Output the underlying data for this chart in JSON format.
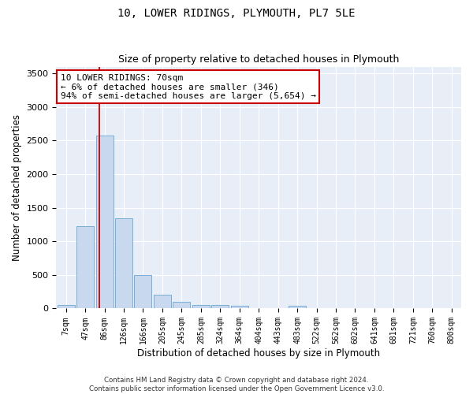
{
  "title": "10, LOWER RIDINGS, PLYMOUTH, PL7 5LE",
  "subtitle": "Size of property relative to detached houses in Plymouth",
  "xlabel": "Distribution of detached houses by size in Plymouth",
  "ylabel": "Number of detached properties",
  "footer_line1": "Contains HM Land Registry data © Crown copyright and database right 2024.",
  "footer_line2": "Contains public sector information licensed under the Open Government Licence v3.0.",
  "bar_color": "#c8d8ee",
  "bar_edge_color": "#7aaed6",
  "background_color": "#e8eef8",
  "grid_color": "#ffffff",
  "bin_labels": [
    "7sqm",
    "47sqm",
    "86sqm",
    "126sqm",
    "166sqm",
    "205sqm",
    "245sqm",
    "285sqm",
    "324sqm",
    "364sqm",
    "404sqm",
    "443sqm",
    "483sqm",
    "522sqm",
    "562sqm",
    "602sqm",
    "641sqm",
    "681sqm",
    "721sqm",
    "760sqm",
    "800sqm"
  ],
  "bar_values": [
    50,
    1225,
    2575,
    1340,
    500,
    200,
    105,
    50,
    50,
    35,
    0,
    0,
    35,
    0,
    0,
    0,
    0,
    0,
    0,
    0,
    0
  ],
  "ylim": [
    0,
    3600
  ],
  "yticks": [
    0,
    500,
    1000,
    1500,
    2000,
    2500,
    3000,
    3500
  ],
  "property_line_x": 1.72,
  "property_line_color": "#cc0000",
  "annotation_line1": "10 LOWER RIDINGS: 70sqm",
  "annotation_line2": "← 6% of detached houses are smaller (346)",
  "annotation_line3": "94% of semi-detached houses are larger (5,654) →",
  "annotation_box_color": "#cc0000",
  "annotation_bg_color": "#ffffff"
}
